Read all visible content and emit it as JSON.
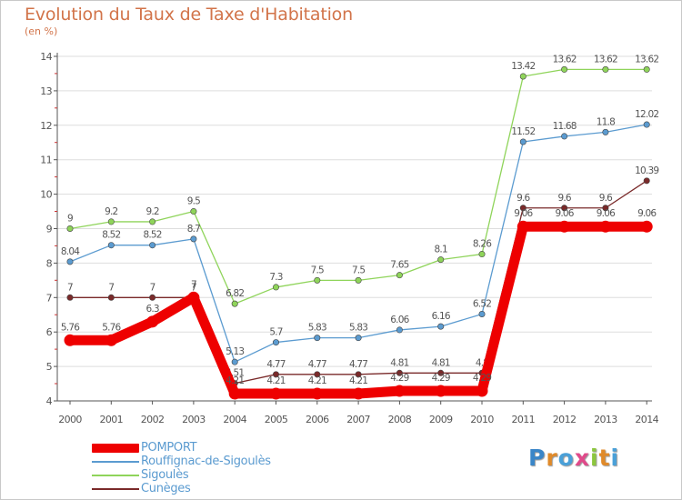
{
  "header": {
    "title": "Evolution du Taux de Taxe d'Habitation",
    "subtitle": "(en %)"
  },
  "logo": {
    "text": "Proxiti",
    "letter_colors": [
      "#3a86c8",
      "#e08a2a",
      "#4aa0d8",
      "#e04a8a",
      "#8cc63e",
      "#e08a2a",
      "#4aa0d8"
    ]
  },
  "colors": {
    "axis": "#555555",
    "gridline": "#dddddd",
    "title": "#d2744a"
  },
  "chart_data": {
    "type": "line",
    "title": "Evolution du Taux de Taxe d'Habitation",
    "subtitle": "(en %)",
    "xlabel": "",
    "ylabel": "",
    "ylim": [
      4,
      14
    ],
    "yticks": [
      4,
      5,
      6,
      7,
      8,
      9,
      10,
      11,
      12,
      13,
      14
    ],
    "grid": "horizontal",
    "legend_position": "bottom-left",
    "categories": [
      "2000",
      "2001",
      "2002",
      "2003",
      "2004",
      "2005",
      "2006",
      "2007",
      "2008",
      "2009",
      "2010",
      "2011",
      "2012",
      "2013",
      "2014"
    ],
    "series": [
      {
        "name": "POMPORT",
        "color": "#ee0000",
        "weight": "thick",
        "values": [
          5.76,
          5.76,
          6.3,
          7,
          4.21,
          4.21,
          4.21,
          4.21,
          4.29,
          4.29,
          4.29,
          9.06,
          9.06,
          9.06,
          9.06
        ],
        "labels": [
          "5.76",
          "5.76",
          "6.3",
          "7",
          "4.21",
          "4.21",
          "4.21",
          "4.21",
          "4.29",
          "4.29",
          "4.29",
          "9.06",
          "9.06",
          "9.06",
          "9.06"
        ]
      },
      {
        "name": "Rouffignac-de-Sigoulès",
        "color": "#5b9bd0",
        "weight": "thin",
        "values": [
          8.04,
          8.52,
          8.52,
          8.7,
          5.13,
          5.7,
          5.83,
          5.83,
          6.06,
          6.16,
          6.52,
          11.52,
          11.68,
          11.8,
          12.02
        ],
        "labels": [
          "8.04",
          "8.52",
          "8.52",
          "8.7",
          "5.13",
          "5.7",
          "5.83",
          "5.83",
          "6.06",
          "6.16",
          "6.52",
          "11.52",
          "11.68",
          "11.8",
          "12.02"
        ]
      },
      {
        "name": "Sigoulès",
        "color": "#8fd45a",
        "weight": "thin",
        "values": [
          9,
          9.2,
          9.2,
          9.5,
          6.82,
          7.3,
          7.5,
          7.5,
          7.65,
          8.1,
          8.26,
          13.42,
          13.62,
          13.62,
          13.62
        ],
        "labels": [
          "9",
          "9.2",
          "9.2",
          "9.5",
          "6.82",
          "7.3",
          "7.5",
          "7.5",
          "7.65",
          "8.1",
          "8.26",
          "13.42",
          "13.62",
          "13.62",
          "13.62"
        ]
      },
      {
        "name": "Cunèges",
        "color": "#7a2a2a",
        "weight": "thin",
        "values": [
          7,
          7,
          7,
          7,
          4.51,
          4.77,
          4.77,
          4.77,
          4.81,
          4.81,
          4.81,
          9.6,
          9.6,
          9.6,
          10.39
        ],
        "labels": [
          "7",
          "7",
          "7",
          "7",
          "4.51",
          "4.77",
          "4.77",
          "4.77",
          "4.81",
          "4.81",
          "4.8",
          "9.6",
          "9.6",
          "9.6",
          "10.39"
        ]
      }
    ]
  }
}
